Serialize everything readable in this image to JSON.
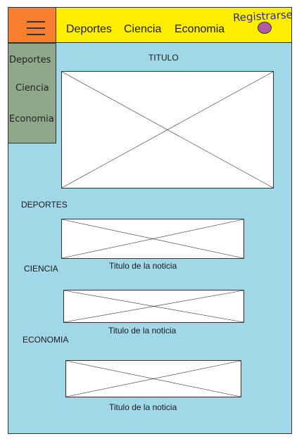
{
  "topbar": {
    "nav": [
      "Deportes",
      "Ciencia",
      "Economia"
    ],
    "register_label": "Registrarse",
    "menu_icon": "hamburger-icon",
    "avatar_icon": "user-avatar-icon"
  },
  "sidebar": {
    "items": [
      "Deportes",
      "Ciencia",
      "Economia"
    ]
  },
  "main": {
    "title": "TITULO",
    "sections": [
      {
        "heading": "DEPORTES",
        "caption": "Titulo de la noticia"
      },
      {
        "heading": "CIENCIA",
        "caption": "Titulo de la noticia"
      },
      {
        "heading": "ECONOMIA",
        "caption": "Titulo de la noticia"
      }
    ]
  },
  "colors": {
    "background": "#a0d8e8",
    "menu_button": "#f77f2e",
    "topbar": "#ffee00",
    "sidebar": "#8fa88a",
    "avatar": "#b05aa8"
  }
}
